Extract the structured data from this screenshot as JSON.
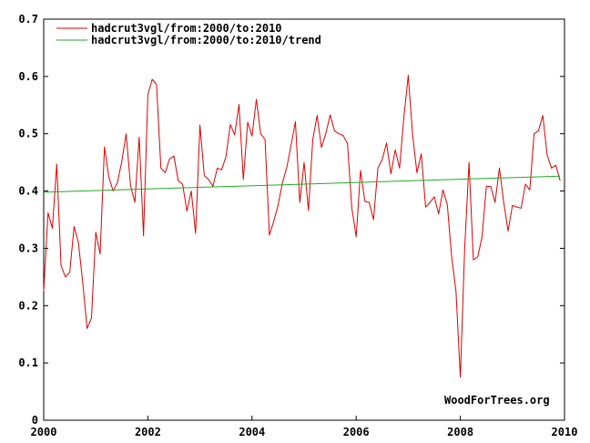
{
  "chart_data": {
    "type": "line",
    "title": "",
    "xlabel": "",
    "ylabel": "",
    "xlim": [
      2000,
      2010
    ],
    "ylim": [
      0,
      0.7
    ],
    "grid": false,
    "legend_placement": "top-left",
    "x_ticks": [
      "2000",
      "2002",
      "2004",
      "2006",
      "2008",
      "2010"
    ],
    "y_ticks": [
      "0",
      "0.1",
      "0.2",
      "0.3",
      "0.4",
      "0.5",
      "0.6",
      "0.7"
    ],
    "credit": "WoodForTrees.org",
    "series": [
      {
        "name": "hadcrut3vgl/from:2000/to:2010",
        "color": "#dd0000",
        "x_start": 2000.0,
        "x_step": 0.08333333,
        "values": [
          0.225,
          0.362,
          0.335,
          0.447,
          0.27,
          0.25,
          0.258,
          0.338,
          0.31,
          0.24,
          0.16,
          0.178,
          0.328,
          0.29,
          0.477,
          0.425,
          0.4,
          0.415,
          0.452,
          0.5,
          0.41,
          0.38,
          0.494,
          0.322,
          0.568,
          0.595,
          0.586,
          0.44,
          0.432,
          0.456,
          0.461,
          0.418,
          0.412,
          0.365,
          0.4,
          0.326,
          0.515,
          0.427,
          0.42,
          0.408,
          0.44,
          0.437,
          0.46,
          0.516,
          0.498,
          0.551,
          0.42,
          0.52,
          0.496,
          0.56,
          0.5,
          0.49,
          0.323,
          0.347,
          0.375,
          0.414,
          0.441,
          0.48,
          0.521,
          0.38,
          0.45,
          0.366,
          0.49,
          0.532,
          0.476,
          0.5,
          0.533,
          0.505,
          0.5,
          0.497,
          0.483,
          0.37,
          0.32,
          0.436,
          0.382,
          0.38,
          0.35,
          0.44,
          0.455,
          0.484,
          0.43,
          0.472,
          0.44,
          0.53,
          0.602,
          0.498,
          0.432,
          0.465,
          0.372,
          0.38,
          0.39,
          0.36,
          0.402,
          0.376,
          0.285,
          0.225,
          0.075,
          0.3,
          0.45,
          0.28,
          0.285,
          0.32,
          0.408,
          0.408,
          0.38,
          0.44,
          0.38,
          0.33,
          0.375,
          0.372,
          0.37,
          0.412,
          0.402,
          0.5,
          0.505,
          0.532,
          0.463,
          0.44,
          0.445,
          0.418
        ]
      },
      {
        "name": "hadcrut3vgl/from:2000/to:2010/trend",
        "color": "#22aa22",
        "x": [
          2000.0,
          2009.917
        ],
        "values": [
          0.398,
          0.426
        ]
      }
    ]
  }
}
